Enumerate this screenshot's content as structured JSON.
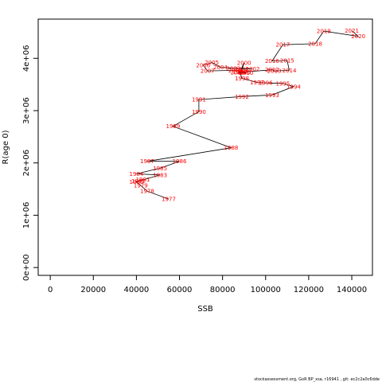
{
  "chart_data": {
    "type": "scatter",
    "title": "",
    "xlabel": "SSB",
    "ylabel": "R(age 0)",
    "xlim": [
      -5600,
      149600
    ],
    "ylim": [
      -150000,
      4750000
    ],
    "x_ticks": [
      0,
      20000,
      40000,
      60000,
      80000,
      100000,
      120000,
      140000
    ],
    "x_tick_labels": [
      "0",
      "20000",
      "40000",
      "60000",
      "80000",
      "100000",
      "120000",
      "140000"
    ],
    "y_ticks": [
      0,
      1000000,
      2000000,
      3000000,
      4000000
    ],
    "y_tick_labels": [
      "0e+00",
      "1e+06",
      "2e+06",
      "3e+06",
      "4e+06"
    ],
    "line_color": "#000000",
    "label_color": "#ff0000",
    "grid": false,
    "points": [
      {
        "year": "1977",
        "x": 55000,
        "y": 1310000
      },
      {
        "year": "1978",
        "x": 45000,
        "y": 1460000
      },
      {
        "year": "1979",
        "x": 42000,
        "y": 1570000
      },
      {
        "year": "1980",
        "x": 40000,
        "y": 1640000
      },
      {
        "year": "1981",
        "x": 43000,
        "y": 1680000
      },
      {
        "year": "1982",
        "x": 41000,
        "y": 1650000
      },
      {
        "year": "1983",
        "x": 51000,
        "y": 1770000
      },
      {
        "year": "1984",
        "x": 40000,
        "y": 1790000
      },
      {
        "year": "1985",
        "x": 51000,
        "y": 1900000
      },
      {
        "year": "1986",
        "x": 60000,
        "y": 2030000
      },
      {
        "year": "1987",
        "x": 45000,
        "y": 2030000
      },
      {
        "year": "1988",
        "x": 84000,
        "y": 2290000
      },
      {
        "year": "1989",
        "x": 57000,
        "y": 2700000
      },
      {
        "year": "1990",
        "x": 69000,
        "y": 2980000
      },
      {
        "year": "1991",
        "x": 69000,
        "y": 3210000
      },
      {
        "year": "1992",
        "x": 89000,
        "y": 3270000
      },
      {
        "year": "1993",
        "x": 103000,
        "y": 3300000
      },
      {
        "year": "1994",
        "x": 113000,
        "y": 3460000
      },
      {
        "year": "1995",
        "x": 108000,
        "y": 3520000
      },
      {
        "year": "1996",
        "x": 100000,
        "y": 3530000
      },
      {
        "year": "1997",
        "x": 96000,
        "y": 3540000
      },
      {
        "year": "1998",
        "x": 89000,
        "y": 3620000
      },
      {
        "year": "1999",
        "x": 88000,
        "y": 3740000
      },
      {
        "year": "2000",
        "x": 90000,
        "y": 3910000
      },
      {
        "year": "2001",
        "x": 89000,
        "y": 3790000
      },
      {
        "year": "2002",
        "x": 94000,
        "y": 3800000
      },
      {
        "year": "2003",
        "x": 85000,
        "y": 3810000
      },
      {
        "year": "2004",
        "x": 79000,
        "y": 3830000
      },
      {
        "year": "2005",
        "x": 75000,
        "y": 3920000
      },
      {
        "year": "2006",
        "x": 71000,
        "y": 3870000
      },
      {
        "year": "2007",
        "x": 73000,
        "y": 3760000
      },
      {
        "year": "2008",
        "x": 86000,
        "y": 3770000
      },
      {
        "year": "2009",
        "x": 90000,
        "y": 3740000
      },
      {
        "year": "2010",
        "x": 91000,
        "y": 3720000
      },
      {
        "year": "2011",
        "x": 87000,
        "y": 3730000
      },
      {
        "year": "2012",
        "x": 103000,
        "y": 3780000
      },
      {
        "year": "2013",
        "x": 104000,
        "y": 3760000
      },
      {
        "year": "2014",
        "x": 111000,
        "y": 3770000
      },
      {
        "year": "2015",
        "x": 110000,
        "y": 3960000
      },
      {
        "year": "2016",
        "x": 103000,
        "y": 3950000
      },
      {
        "year": "2017",
        "x": 108000,
        "y": 4260000
      },
      {
        "year": "2018",
        "x": 123000,
        "y": 4280000
      },
      {
        "year": "2019",
        "x": 127000,
        "y": 4520000
      },
      {
        "year": "2020",
        "x": 143000,
        "y": 4420000
      },
      {
        "year": "2021",
        "x": 140000,
        "y": 4530000
      }
    ]
  },
  "footer": {
    "text": "stockassessment.org, GoR BP_xsa, r16941 , git: ec2c2a0c6dde"
  }
}
